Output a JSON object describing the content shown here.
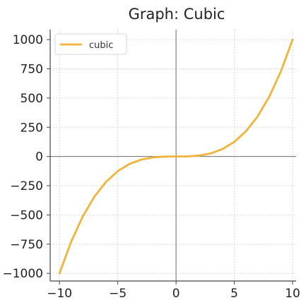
{
  "chart_data": {
    "type": "line",
    "title": "Graph: Cubic",
    "xlabel": "",
    "ylabel": "",
    "xlim": [
      -10,
      10
    ],
    "ylim": [
      -1000,
      1000
    ],
    "x_ticks": [
      -10,
      -5,
      0,
      5,
      10
    ],
    "y_ticks": [
      -1000,
      -750,
      -500,
      -250,
      0,
      250,
      500,
      750,
      1000
    ],
    "x_tick_labels": [
      "−10",
      "−5",
      "0",
      "5",
      "10"
    ],
    "y_tick_labels": [
      "−1000",
      "−750",
      "−500",
      "−250",
      "0",
      "250",
      "500",
      "750",
      "1000"
    ],
    "grid": true,
    "legend_position": "top-left",
    "series": [
      {
        "name": "cubic",
        "color": "#f0b43c",
        "x": [
          -10,
          -9,
          -8,
          -7,
          -6,
          -5,
          -4,
          -3,
          -2,
          -1,
          0,
          1,
          2,
          3,
          4,
          5,
          6,
          7,
          8,
          9,
          10
        ],
        "y": [
          -1000,
          -729,
          -512,
          -343,
          -216,
          -125,
          -64,
          -27,
          -8,
          -1,
          0,
          1,
          8,
          27,
          64,
          125,
          216,
          343,
          512,
          729,
          1000
        ]
      }
    ]
  }
}
